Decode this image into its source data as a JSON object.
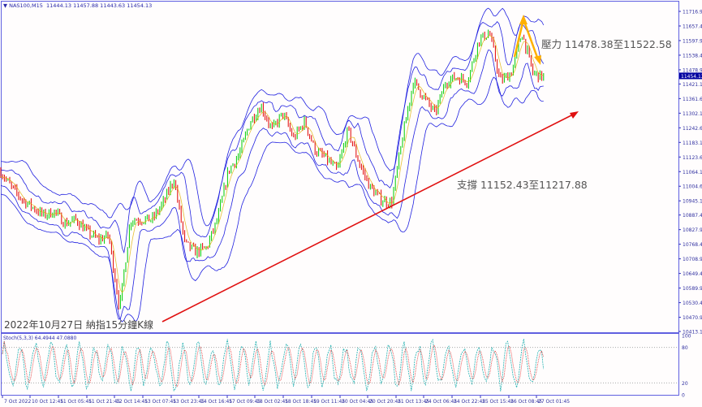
{
  "header": {
    "arrow_icon": "triangle-down-icon",
    "symbol": "NAS100,M15",
    "ohlc": "11444.13 11457.88 11443.63 11454.13"
  },
  "annotations": {
    "resistance": "壓力 11478.38至11522.58",
    "support": "支撐 11152.43至11217.88",
    "caption": "2022年10月27日 納指15分鐘K線"
  },
  "stoch": {
    "label": "Stoch(5,3,3) 64.4944 47.0880",
    "levels": [
      "100",
      "80",
      "20",
      "0"
    ]
  },
  "colors": {
    "axis": "#3030c0",
    "bands": "#2020e0",
    "bull": "#00cc00",
    "bear": "#e00000",
    "ma": "#e0b000",
    "support_line": "#e01010",
    "resistance_arrow": "#ffb000",
    "stoch_main": "#20b0b0",
    "stoch_signal": "#e03030",
    "current_price_bg": "#0000a0"
  },
  "chart_data": {
    "type": "candlestick",
    "title": "",
    "price_axis_ticks": [
      "11716.90",
      "11657.40",
      "11597.90",
      "11538.40",
      "11478.90",
      "11421.15",
      "11361.65",
      "11302.15",
      "11242.65",
      "11183.15",
      "11123.65",
      "11064.15",
      "11004.65",
      "10945.15",
      "10887.40",
      "10827.90",
      "10768.40",
      "10708.90",
      "10649.40",
      "10589.90",
      "10530.40",
      "10470.90",
      "10413.15"
    ],
    "current_price": "11454.13",
    "ylim": [
      10413.15,
      11716.9
    ],
    "time_axis_ticks": [
      "7 Oct 2022",
      "10 Oct 12:45",
      "11 Oct 05:45",
      "11 Oct 21:45",
      "12 Oct 14:45",
      "13 Oct 07:45",
      "13 Oct 23:45",
      "14 Oct 16:45",
      "17 Oct 09:45",
      "18 Oct 02:45",
      "18 Oct 18:45",
      "19 Oct 11:45",
      "20 Oct 04:45",
      "20 Oct 20:45",
      "21 Oct 13:45",
      "24 Oct 06:45",
      "24 Oct 22:45",
      "25 Oct 15:45",
      "26 Oct 08:45",
      "27 Oct 01:45"
    ],
    "series": [
      {
        "values": [
          11068,
          11002,
          10952,
          10919,
          10886,
          10902,
          10853,
          10869,
          10820,
          10787,
          10803,
          10505,
          10869,
          10869,
          10869,
          10936,
          11035,
          10770,
          10737,
          10754,
          10869,
          11068,
          11134,
          11267,
          11333,
          11234,
          11300,
          11200,
          11267,
          11150,
          11117,
          11068,
          11234,
          11101,
          11002,
          10952,
          10935,
          11200,
          11432,
          11366,
          11300,
          11432,
          11449,
          11432,
          11598,
          11631,
          11432,
          11465,
          11631,
          11465,
          11449
        ]
      }
    ],
    "support_line": {
      "from": 10470.9,
      "to": 11302.15
    },
    "resistance_range": [
      11478.38,
      11522.58
    ],
    "support_range": [
      11152.43,
      11217.88
    ]
  }
}
